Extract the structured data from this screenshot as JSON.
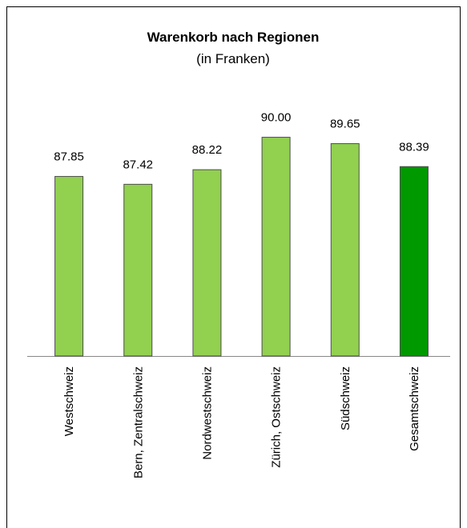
{
  "chart_data": {
    "type": "bar",
    "title": "Warenkorb nach Regionen",
    "subtitle": "(in Franken)",
    "categories": [
      "Westschweiz",
      "Bern, Zentralschweiz",
      "Nordwestschweiz",
      "Zürich, Ostschweiz",
      "Südschweiz",
      "Gesamtschweiz"
    ],
    "values": [
      87.85,
      87.42,
      88.22,
      90.0,
      89.65,
      88.39
    ],
    "value_labels": [
      "87.85",
      "87.42",
      "88.22",
      "90.00",
      "89.65",
      "88.39"
    ],
    "colors": [
      "#92d050",
      "#92d050",
      "#92d050",
      "#92d050",
      "#92d050",
      "#009900"
    ],
    "ylim": [
      78,
      92
    ]
  }
}
